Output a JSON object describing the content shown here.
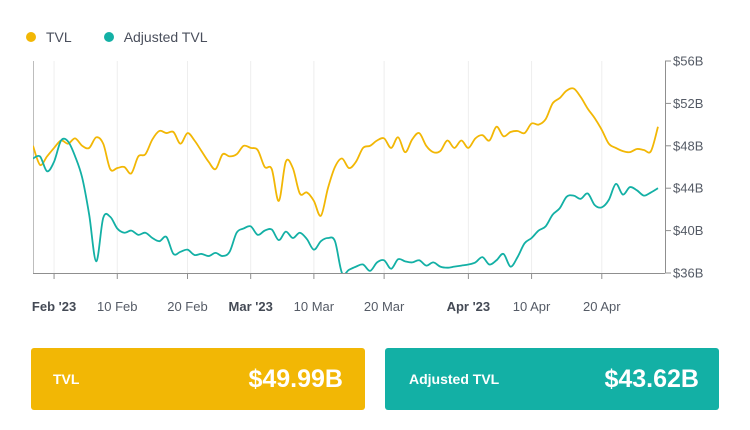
{
  "legend": {
    "items": [
      {
        "label": "TVL",
        "color": "#f2b705"
      },
      {
        "label": "Adjusted TVL",
        "color": "#13b0a5"
      }
    ]
  },
  "cards": {
    "tvl": {
      "label": "TVL",
      "value": "$49.99B",
      "color": "#f2b705"
    },
    "adjusted": {
      "label": "Adjusted TVL",
      "value": "$43.62B",
      "color": "#13b0a5"
    }
  },
  "chart_data": {
    "type": "line",
    "y_axis": {
      "position": "right",
      "range": [
        36,
        56
      ],
      "unit": "B",
      "ticks": [
        {
          "value": 56,
          "label": "$56B"
        },
        {
          "value": 52,
          "label": "$52B"
        },
        {
          "value": 48,
          "label": "$48B"
        },
        {
          "value": 44,
          "label": "$44B"
        },
        {
          "value": 40,
          "label": "$40B"
        },
        {
          "value": 36,
          "label": "$36B"
        }
      ]
    },
    "x_axis": {
      "range": [
        "2023-01-29",
        "2023-04-29"
      ],
      "ticks": [
        {
          "date": "2023-02-01",
          "label": "Feb '23",
          "bold": true
        },
        {
          "date": "2023-02-10",
          "label": "10 Feb",
          "bold": false
        },
        {
          "date": "2023-02-20",
          "label": "20 Feb",
          "bold": false
        },
        {
          "date": "2023-03-01",
          "label": "Mar '23",
          "bold": true
        },
        {
          "date": "2023-03-10",
          "label": "10 Mar",
          "bold": false
        },
        {
          "date": "2023-03-20",
          "label": "20 Mar",
          "bold": false
        },
        {
          "date": "2023-04-01",
          "label": "Apr '23",
          "bold": true
        },
        {
          "date": "2023-04-10",
          "label": "10 Apr",
          "bold": false
        },
        {
          "date": "2023-04-20",
          "label": "20 Apr",
          "bold": false
        }
      ]
    },
    "grid": {
      "vertical": true,
      "horizontal": false
    },
    "legend_position": "top-left",
    "series": [
      {
        "name": "TVL",
        "color": "#f2b705",
        "points": [
          [
            "2023-01-29",
            48.0
          ],
          [
            "2023-01-30",
            46.2
          ],
          [
            "2023-01-31",
            47.0
          ],
          [
            "2023-02-01",
            47.8
          ],
          [
            "2023-02-02",
            48.5
          ],
          [
            "2023-02-03",
            48.2
          ],
          [
            "2023-02-04",
            48.7
          ],
          [
            "2023-02-05",
            48.0
          ],
          [
            "2023-02-06",
            47.8
          ],
          [
            "2023-02-07",
            48.8
          ],
          [
            "2023-02-08",
            48.2
          ],
          [
            "2023-02-09",
            45.8
          ],
          [
            "2023-02-10",
            45.9
          ],
          [
            "2023-02-11",
            46.0
          ],
          [
            "2023-02-12",
            45.4
          ],
          [
            "2023-02-13",
            47.0
          ],
          [
            "2023-02-14",
            47.2
          ],
          [
            "2023-02-15",
            48.6
          ],
          [
            "2023-02-16",
            49.4
          ],
          [
            "2023-02-17",
            49.2
          ],
          [
            "2023-02-18",
            49.3
          ],
          [
            "2023-02-19",
            48.2
          ],
          [
            "2023-02-20",
            49.2
          ],
          [
            "2023-02-21",
            48.5
          ],
          [
            "2023-02-22",
            47.5
          ],
          [
            "2023-02-23",
            46.5
          ],
          [
            "2023-02-24",
            45.8
          ],
          [
            "2023-02-25",
            47.2
          ],
          [
            "2023-02-26",
            47.0
          ],
          [
            "2023-02-27",
            47.2
          ],
          [
            "2023-02-28",
            48.0
          ],
          [
            "2023-03-01",
            47.8
          ],
          [
            "2023-03-02",
            47.6
          ],
          [
            "2023-03-03",
            46.0
          ],
          [
            "2023-03-04",
            45.8
          ],
          [
            "2023-03-05",
            42.8
          ],
          [
            "2023-03-06",
            46.5
          ],
          [
            "2023-03-07",
            45.9
          ],
          [
            "2023-03-08",
            43.5
          ],
          [
            "2023-03-09",
            43.6
          ],
          [
            "2023-03-10",
            42.8
          ],
          [
            "2023-03-11",
            41.4
          ],
          [
            "2023-03-12",
            44.0
          ],
          [
            "2023-03-13",
            46.0
          ],
          [
            "2023-03-14",
            46.8
          ],
          [
            "2023-03-15",
            45.9
          ],
          [
            "2023-03-16",
            46.5
          ],
          [
            "2023-03-17",
            47.8
          ],
          [
            "2023-03-18",
            48.0
          ],
          [
            "2023-03-19",
            48.5
          ],
          [
            "2023-03-20",
            48.7
          ],
          [
            "2023-03-21",
            47.8
          ],
          [
            "2023-03-22",
            48.8
          ],
          [
            "2023-03-23",
            47.4
          ],
          [
            "2023-03-24",
            48.6
          ],
          [
            "2023-03-25",
            49.2
          ],
          [
            "2023-03-26",
            48.0
          ],
          [
            "2023-03-27",
            47.4
          ],
          [
            "2023-03-28",
            47.5
          ],
          [
            "2023-03-29",
            48.5
          ],
          [
            "2023-03-30",
            47.8
          ],
          [
            "2023-03-31",
            48.5
          ],
          [
            "2023-04-01",
            47.8
          ],
          [
            "2023-04-02",
            48.7
          ],
          [
            "2023-04-03",
            49.0
          ],
          [
            "2023-04-04",
            48.5
          ],
          [
            "2023-04-05",
            49.8
          ],
          [
            "2023-04-06",
            48.9
          ],
          [
            "2023-04-07",
            49.3
          ],
          [
            "2023-04-08",
            49.4
          ],
          [
            "2023-04-09",
            49.2
          ],
          [
            "2023-04-10",
            50.1
          ],
          [
            "2023-04-11",
            50.0
          ],
          [
            "2023-04-12",
            50.5
          ],
          [
            "2023-04-13",
            52.0
          ],
          [
            "2023-04-14",
            52.5
          ],
          [
            "2023-04-15",
            53.2
          ],
          [
            "2023-04-16",
            53.4
          ],
          [
            "2023-04-17",
            52.6
          ],
          [
            "2023-04-18",
            51.5
          ],
          [
            "2023-04-19",
            50.6
          ],
          [
            "2023-04-20",
            49.5
          ],
          [
            "2023-04-21",
            48.2
          ],
          [
            "2023-04-22",
            47.8
          ],
          [
            "2023-04-23",
            47.5
          ],
          [
            "2023-04-24",
            47.4
          ],
          [
            "2023-04-25",
            47.7
          ],
          [
            "2023-04-26",
            47.6
          ],
          [
            "2023-04-27",
            47.5
          ],
          [
            "2023-04-28",
            49.8
          ]
        ]
      },
      {
        "name": "Adjusted TVL",
        "color": "#13b0a5",
        "points": [
          [
            "2023-01-29",
            46.8
          ],
          [
            "2023-01-30",
            47.0
          ],
          [
            "2023-01-31",
            45.6
          ],
          [
            "2023-02-01",
            46.5
          ],
          [
            "2023-02-02",
            48.5
          ],
          [
            "2023-02-03",
            48.4
          ],
          [
            "2023-02-04",
            47.0
          ],
          [
            "2023-02-05",
            45.0
          ],
          [
            "2023-02-06",
            41.5
          ],
          [
            "2023-02-07",
            37.1
          ],
          [
            "2023-02-08",
            41.2
          ],
          [
            "2023-02-09",
            41.3
          ],
          [
            "2023-02-10",
            40.2
          ],
          [
            "2023-02-11",
            39.8
          ],
          [
            "2023-02-12",
            40.0
          ],
          [
            "2023-02-13",
            39.6
          ],
          [
            "2023-02-14",
            39.8
          ],
          [
            "2023-02-15",
            39.3
          ],
          [
            "2023-02-16",
            39.0
          ],
          [
            "2023-02-17",
            39.4
          ],
          [
            "2023-02-18",
            37.8
          ],
          [
            "2023-02-19",
            38.0
          ],
          [
            "2023-02-20",
            38.2
          ],
          [
            "2023-02-21",
            37.7
          ],
          [
            "2023-02-22",
            37.8
          ],
          [
            "2023-02-23",
            37.6
          ],
          [
            "2023-02-24",
            37.9
          ],
          [
            "2023-02-25",
            37.6
          ],
          [
            "2023-02-26",
            38.0
          ],
          [
            "2023-02-27",
            39.8
          ],
          [
            "2023-02-28",
            40.2
          ],
          [
            "2023-03-01",
            40.4
          ],
          [
            "2023-03-02",
            39.6
          ],
          [
            "2023-03-03",
            40.0
          ],
          [
            "2023-03-04",
            40.1
          ],
          [
            "2023-03-05",
            39.1
          ],
          [
            "2023-03-06",
            39.9
          ],
          [
            "2023-03-07",
            39.3
          ],
          [
            "2023-03-08",
            39.8
          ],
          [
            "2023-03-09",
            39.2
          ],
          [
            "2023-03-10",
            38.2
          ],
          [
            "2023-03-11",
            39.0
          ],
          [
            "2023-03-12",
            39.3
          ],
          [
            "2023-03-13",
            39.0
          ],
          [
            "2023-03-14",
            36.0
          ],
          [
            "2023-03-15",
            36.3
          ],
          [
            "2023-03-16",
            36.6
          ],
          [
            "2023-03-17",
            36.8
          ],
          [
            "2023-03-18",
            36.2
          ],
          [
            "2023-03-19",
            37.0
          ],
          [
            "2023-03-20",
            37.2
          ],
          [
            "2023-03-21",
            36.4
          ],
          [
            "2023-03-22",
            37.3
          ],
          [
            "2023-03-23",
            37.1
          ],
          [
            "2023-03-24",
            37.0
          ],
          [
            "2023-03-25",
            37.2
          ],
          [
            "2023-03-26",
            36.7
          ],
          [
            "2023-03-27",
            37.0
          ],
          [
            "2023-03-28",
            36.6
          ],
          [
            "2023-03-29",
            36.5
          ],
          [
            "2023-03-30",
            36.6
          ],
          [
            "2023-03-31",
            36.7
          ],
          [
            "2023-04-01",
            36.8
          ],
          [
            "2023-04-02",
            37.0
          ],
          [
            "2023-04-03",
            37.5
          ],
          [
            "2023-04-04",
            36.8
          ],
          [
            "2023-04-05",
            37.2
          ],
          [
            "2023-04-06",
            37.8
          ],
          [
            "2023-04-07",
            36.6
          ],
          [
            "2023-04-08",
            37.5
          ],
          [
            "2023-04-09",
            38.8
          ],
          [
            "2023-04-10",
            39.3
          ],
          [
            "2023-04-11",
            40.0
          ],
          [
            "2023-04-12",
            40.4
          ],
          [
            "2023-04-13",
            41.5
          ],
          [
            "2023-04-14",
            42.1
          ],
          [
            "2023-04-15",
            43.2
          ],
          [
            "2023-04-16",
            43.3
          ],
          [
            "2023-04-17",
            43.0
          ],
          [
            "2023-04-18",
            43.5
          ],
          [
            "2023-04-19",
            42.4
          ],
          [
            "2023-04-20",
            42.2
          ],
          [
            "2023-04-21",
            42.9
          ],
          [
            "2023-04-22",
            44.4
          ],
          [
            "2023-04-23",
            43.4
          ],
          [
            "2023-04-24",
            44.1
          ],
          [
            "2023-04-25",
            43.8
          ],
          [
            "2023-04-26",
            43.3
          ],
          [
            "2023-04-27",
            43.6
          ],
          [
            "2023-04-28",
            44.0
          ]
        ]
      }
    ]
  }
}
